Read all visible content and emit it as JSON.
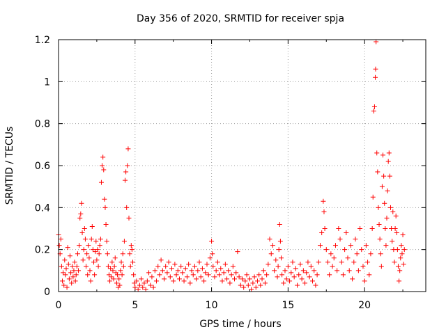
{
  "chart_data": {
    "type": "scatter",
    "title": "Day 356 of 2020, SRMTID for receiver spja",
    "xlabel": "GPS time / hours",
    "ylabel": "SRMTID / TECUs",
    "xlim": [
      0,
      24
    ],
    "ylim": [
      0,
      1.2
    ],
    "x_ticks": [
      0,
      5,
      10,
      15,
      20
    ],
    "x_tick_labels": [
      "0",
      "5",
      "10",
      "15",
      "20"
    ],
    "y_ticks": [
      0,
      0.2,
      0.4,
      0.6,
      0.8,
      1.0,
      1.2
    ],
    "y_tick_labels": [
      "0",
      "0.2",
      "0.4",
      "0.6",
      "0.8",
      "1",
      "1.2"
    ],
    "grid": true,
    "marker": "+",
    "series": [
      {
        "name": "SRMTID",
        "color": "#ff0000",
        "points": [
          [
            0.0,
            0.27
          ],
          [
            0.05,
            0.22
          ],
          [
            0.1,
            0.18
          ],
          [
            0.15,
            0.25
          ],
          [
            0.2,
            0.12
          ],
          [
            0.25,
            0.05
          ],
          [
            0.3,
            0.09
          ],
          [
            0.35,
            0.03
          ],
          [
            0.4,
            0.15
          ],
          [
            0.45,
            0.08
          ],
          [
            0.5,
            0.11
          ],
          [
            0.55,
            0.02
          ],
          [
            0.6,
            0.21
          ],
          [
            0.65,
            0.13
          ],
          [
            0.7,
            0.06
          ],
          [
            0.75,
            0.17
          ],
          [
            0.8,
            0.09
          ],
          [
            0.85,
            0.04
          ],
          [
            0.9,
            0.12
          ],
          [
            0.95,
            0.07
          ],
          [
            1.0,
            0.1
          ],
          [
            1.05,
            0.14
          ],
          [
            1.1,
            0.05
          ],
          [
            1.15,
            0.08
          ],
          [
            1.2,
            0.12
          ],
          [
            1.25,
            0.18
          ],
          [
            1.3,
            0.1
          ],
          [
            1.35,
            0.22
          ],
          [
            1.4,
            0.35
          ],
          [
            1.45,
            0.37
          ],
          [
            1.5,
            0.42
          ],
          [
            1.55,
            0.28
          ],
          [
            1.6,
            0.15
          ],
          [
            1.65,
            0.2
          ],
          [
            1.7,
            0.3
          ],
          [
            1.75,
            0.25
          ],
          [
            1.8,
            0.12
          ],
          [
            1.85,
            0.18
          ],
          [
            1.9,
            0.08
          ],
          [
            1.95,
            0.22
          ],
          [
            2.0,
            0.16
          ],
          [
            2.05,
            0.1
          ],
          [
            2.1,
            0.05
          ],
          [
            2.15,
            0.25
          ],
          [
            2.2,
            0.31
          ],
          [
            2.25,
            0.2
          ],
          [
            2.3,
            0.14
          ],
          [
            2.35,
            0.08
          ],
          [
            2.4,
            0.19
          ],
          [
            2.45,
            0.24
          ],
          [
            2.5,
            0.15
          ],
          [
            2.55,
            0.2
          ],
          [
            2.6,
            0.12
          ],
          [
            2.65,
            0.18
          ],
          [
            2.7,
            0.22
          ],
          [
            2.75,
            0.25
          ],
          [
            2.8,
            0.52
          ],
          [
            2.85,
            0.6
          ],
          [
            2.9,
            0.64
          ],
          [
            2.95,
            0.58
          ],
          [
            3.0,
            0.44
          ],
          [
            3.05,
            0.4
          ],
          [
            3.1,
            0.32
          ],
          [
            3.15,
            0.24
          ],
          [
            3.2,
            0.18
          ],
          [
            3.25,
            0.12
          ],
          [
            3.3,
            0.08
          ],
          [
            3.35,
            0.05
          ],
          [
            3.4,
            0.11
          ],
          [
            3.45,
            0.07
          ],
          [
            3.5,
            0.14
          ],
          [
            3.55,
            0.1
          ],
          [
            3.6,
            0.06
          ],
          [
            3.65,
            0.12
          ],
          [
            3.7,
            0.16
          ],
          [
            3.75,
            0.09
          ],
          [
            3.8,
            0.04
          ],
          [
            3.85,
            0.08
          ],
          [
            3.9,
            0.02
          ],
          [
            3.95,
            0.06
          ],
          [
            4.0,
            0.03
          ],
          [
            4.05,
            0.1
          ],
          [
            4.1,
            0.14
          ],
          [
            4.15,
            0.08
          ],
          [
            4.2,
            0.18
          ],
          [
            4.25,
            0.12
          ],
          [
            4.3,
            0.24
          ],
          [
            4.35,
            0.53
          ],
          [
            4.4,
            0.57
          ],
          [
            4.45,
            0.4
          ],
          [
            4.5,
            0.6
          ],
          [
            4.55,
            0.68
          ],
          [
            4.6,
            0.35
          ],
          [
            4.65,
            0.18
          ],
          [
            4.7,
            0.12
          ],
          [
            4.75,
            0.22
          ],
          [
            4.8,
            0.2
          ],
          [
            4.85,
            0.14
          ],
          [
            4.9,
            0.08
          ],
          [
            4.95,
            0.04
          ],
          [
            5.0,
            0.02
          ],
          [
            5.1,
            0.05
          ],
          [
            5.2,
            0.01
          ],
          [
            5.3,
            0.03
          ],
          [
            5.4,
            0.06
          ],
          [
            5.5,
            0.02
          ],
          [
            5.6,
            0.04
          ],
          [
            5.7,
            0.01
          ],
          [
            5.8,
            0.05
          ],
          [
            5.9,
            0.09
          ],
          [
            6.0,
            0.03
          ],
          [
            6.1,
            0.07
          ],
          [
            6.2,
            0.02
          ],
          [
            6.3,
            0.1
          ],
          [
            6.4,
            0.05
          ],
          [
            6.5,
            0.12
          ],
          [
            6.6,
            0.08
          ],
          [
            6.7,
            0.15
          ],
          [
            6.8,
            0.1
          ],
          [
            6.9,
            0.06
          ],
          [
            7.0,
            0.12
          ],
          [
            7.1,
            0.09
          ],
          [
            7.2,
            0.14
          ],
          [
            7.3,
            0.07
          ],
          [
            7.4,
            0.11
          ],
          [
            7.5,
            0.05
          ],
          [
            7.6,
            0.13
          ],
          [
            7.7,
            0.08
          ],
          [
            7.8,
            0.1
          ],
          [
            7.9,
            0.06
          ],
          [
            8.0,
            0.12
          ],
          [
            8.1,
            0.09
          ],
          [
            8.2,
            0.05
          ],
          [
            8.3,
            0.11
          ],
          [
            8.4,
            0.07
          ],
          [
            8.5,
            0.13
          ],
          [
            8.6,
            0.04
          ],
          [
            8.7,
            0.1
          ],
          [
            8.8,
            0.08
          ],
          [
            8.9,
            0.12
          ],
          [
            9.0,
            0.06
          ],
          [
            9.1,
            0.1
          ],
          [
            9.2,
            0.14
          ],
          [
            9.3,
            0.07
          ],
          [
            9.4,
            0.11
          ],
          [
            9.5,
            0.05
          ],
          [
            9.6,
            0.09
          ],
          [
            9.7,
            0.13
          ],
          [
            9.8,
            0.08
          ],
          [
            9.9,
            0.16
          ],
          [
            10.0,
            0.24
          ],
          [
            10.05,
            0.18
          ],
          [
            10.1,
            0.12
          ],
          [
            10.2,
            0.07
          ],
          [
            10.3,
            0.1
          ],
          [
            10.4,
            0.14
          ],
          [
            10.5,
            0.08
          ],
          [
            10.6,
            0.11
          ],
          [
            10.7,
            0.05
          ],
          [
            10.8,
            0.09
          ],
          [
            10.9,
            0.13
          ],
          [
            11.0,
            0.06
          ],
          [
            11.1,
            0.1
          ],
          [
            11.2,
            0.04
          ],
          [
            11.3,
            0.08
          ],
          [
            11.4,
            0.12
          ],
          [
            11.5,
            0.06
          ],
          [
            11.6,
            0.09
          ],
          [
            11.7,
            0.19
          ],
          [
            11.8,
            0.07
          ],
          [
            11.9,
            0.03
          ],
          [
            12.0,
            0.06
          ],
          [
            12.1,
            0.02
          ],
          [
            12.2,
            0.05
          ],
          [
            12.3,
            0.08
          ],
          [
            12.4,
            0.03
          ],
          [
            12.5,
            0.06
          ],
          [
            12.6,
            0.01
          ],
          [
            12.7,
            0.04
          ],
          [
            12.8,
            0.07
          ],
          [
            12.9,
            0.02
          ],
          [
            13.0,
            0.05
          ],
          [
            13.1,
            0.08
          ],
          [
            13.2,
            0.03
          ],
          [
            13.3,
            0.06
          ],
          [
            13.4,
            0.1
          ],
          [
            13.5,
            0.04
          ],
          [
            13.6,
            0.08
          ],
          [
            13.7,
            0.13
          ],
          [
            13.8,
            0.25
          ],
          [
            13.9,
            0.18
          ],
          [
            14.0,
            0.22
          ],
          [
            14.1,
            0.1
          ],
          [
            14.2,
            0.15
          ],
          [
            14.3,
            0.07
          ],
          [
            14.35,
            0.12
          ],
          [
            14.4,
            0.2
          ],
          [
            14.45,
            0.32
          ],
          [
            14.5,
            0.24
          ],
          [
            14.55,
            0.16
          ],
          [
            14.6,
            0.08
          ],
          [
            14.7,
            0.04
          ],
          [
            14.8,
            0.1
          ],
          [
            14.9,
            0.06
          ],
          [
            15.0,
            0.12
          ],
          [
            15.1,
            0.05
          ],
          [
            15.2,
            0.09
          ],
          [
            15.3,
            0.14
          ],
          [
            15.4,
            0.07
          ],
          [
            15.5,
            0.11
          ],
          [
            15.6,
            0.03
          ],
          [
            15.7,
            0.08
          ],
          [
            15.8,
            0.13
          ],
          [
            15.9,
            0.06
          ],
          [
            16.0,
            0.1
          ],
          [
            16.1,
            0.04
          ],
          [
            16.2,
            0.09
          ],
          [
            16.3,
            0.14
          ],
          [
            16.4,
            0.07
          ],
          [
            16.5,
            0.12
          ],
          [
            16.6,
            0.05
          ],
          [
            16.7,
            0.1
          ],
          [
            16.8,
            0.03
          ],
          [
            16.9,
            0.08
          ],
          [
            17.0,
            0.14
          ],
          [
            17.1,
            0.22
          ],
          [
            17.2,
            0.28
          ],
          [
            17.3,
            0.43
          ],
          [
            17.35,
            0.38
          ],
          [
            17.4,
            0.3
          ],
          [
            17.5,
            0.2
          ],
          [
            17.6,
            0.14
          ],
          [
            17.7,
            0.08
          ],
          [
            17.8,
            0.18
          ],
          [
            17.9,
            0.12
          ],
          [
            18.0,
            0.16
          ],
          [
            18.1,
            0.22
          ],
          [
            18.2,
            0.1
          ],
          [
            18.3,
            0.3
          ],
          [
            18.4,
            0.25
          ],
          [
            18.5,
            0.14
          ],
          [
            18.6,
            0.08
          ],
          [
            18.7,
            0.2
          ],
          [
            18.8,
            0.28
          ],
          [
            18.9,
            0.16
          ],
          [
            19.0,
            0.1
          ],
          [
            19.1,
            0.22
          ],
          [
            19.2,
            0.06
          ],
          [
            19.3,
            0.14
          ],
          [
            19.4,
            0.25
          ],
          [
            19.5,
            0.18
          ],
          [
            19.6,
            0.1
          ],
          [
            19.7,
            0.3
          ],
          [
            19.8,
            0.2
          ],
          [
            19.9,
            0.12
          ],
          [
            20.0,
            0.05
          ],
          [
            20.1,
            0.22
          ],
          [
            20.2,
            0.14
          ],
          [
            20.3,
            0.08
          ],
          [
            20.4,
            0.18
          ],
          [
            20.5,
            0.3
          ],
          [
            20.55,
            0.45
          ],
          [
            20.6,
            0.86
          ],
          [
            20.65,
            0.88
          ],
          [
            20.7,
            1.02
          ],
          [
            20.72,
            1.06
          ],
          [
            20.75,
            1.19
          ],
          [
            20.8,
            0.66
          ],
          [
            20.85,
            0.57
          ],
          [
            20.9,
            0.4
          ],
          [
            20.95,
            0.32
          ],
          [
            21.0,
            0.25
          ],
          [
            21.05,
            0.18
          ],
          [
            21.1,
            0.12
          ],
          [
            21.15,
            0.5
          ],
          [
            21.2,
            0.65
          ],
          [
            21.25,
            0.55
          ],
          [
            21.3,
            0.42
          ],
          [
            21.35,
            0.3
          ],
          [
            21.4,
            0.22
          ],
          [
            21.45,
            0.35
          ],
          [
            21.5,
            0.48
          ],
          [
            21.55,
            0.62
          ],
          [
            21.6,
            0.66
          ],
          [
            21.65,
            0.55
          ],
          [
            21.7,
            0.4
          ],
          [
            21.75,
            0.3
          ],
          [
            21.8,
            0.24
          ],
          [
            21.85,
            0.38
          ],
          [
            21.9,
            0.2
          ],
          [
            21.95,
            0.14
          ],
          [
            22.0,
            0.3
          ],
          [
            22.05,
            0.36
          ],
          [
            22.1,
            0.28
          ],
          [
            22.15,
            0.2
          ],
          [
            22.2,
            0.12
          ],
          [
            22.25,
            0.05
          ],
          [
            22.3,
            0.1
          ],
          [
            22.35,
            0.16
          ],
          [
            22.4,
            0.22
          ],
          [
            22.45,
            0.18
          ],
          [
            22.5,
            0.27
          ],
          [
            22.55,
            0.13
          ],
          [
            22.6,
            0.2
          ]
        ]
      }
    ]
  }
}
